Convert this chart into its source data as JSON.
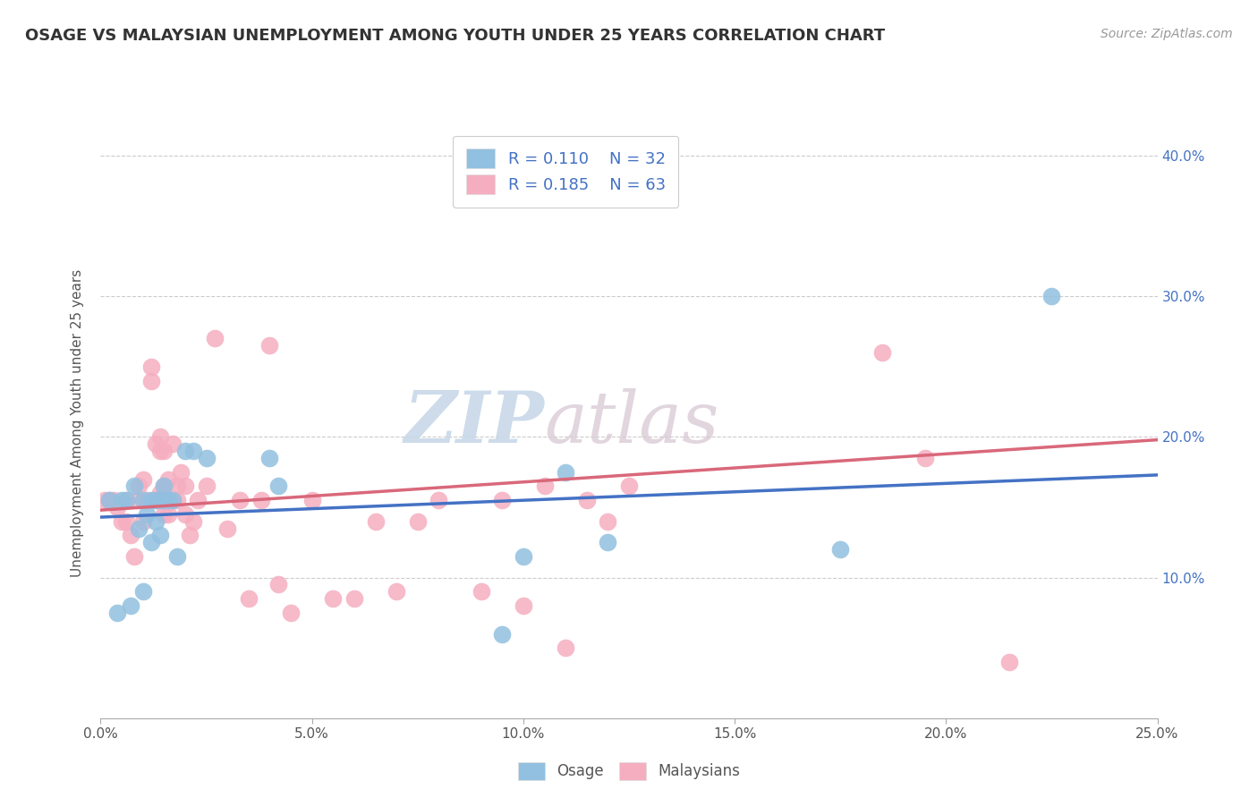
{
  "title": "OSAGE VS MALAYSIAN UNEMPLOYMENT AMONG YOUTH UNDER 25 YEARS CORRELATION CHART",
  "source": "Source: ZipAtlas.com",
  "ylabel": "Unemployment Among Youth under 25 years",
  "xlim": [
    0.0,
    0.25
  ],
  "ylim": [
    0.0,
    0.42
  ],
  "xticks": [
    0.0,
    0.05,
    0.1,
    0.15,
    0.2,
    0.25
  ],
  "yticks": [
    0.1,
    0.2,
    0.3,
    0.4
  ],
  "ytick_labels": [
    "10.0%",
    "20.0%",
    "30.0%",
    "40.0%"
  ],
  "xtick_labels": [
    "0.0%",
    "5.0%",
    "10.0%",
    "15.0%",
    "20.0%",
    "25.0%"
  ],
  "legend_r1": "R = 0.110",
  "legend_n1": "N = 32",
  "legend_r2": "R = 0.185",
  "legend_n2": "N = 63",
  "osage_color": "#92c0e0",
  "malay_color": "#f5aec0",
  "osage_line_color": "#4472c4",
  "malay_line_color": "#d9687a",
  "watermark_zip": "ZIP",
  "watermark_atlas": "atlas",
  "osage_x": [
    0.002,
    0.004,
    0.005,
    0.006,
    0.007,
    0.008,
    0.009,
    0.01,
    0.01,
    0.011,
    0.012,
    0.012,
    0.013,
    0.013,
    0.014,
    0.014,
    0.015,
    0.015,
    0.016,
    0.017,
    0.018,
    0.02,
    0.022,
    0.025,
    0.04,
    0.042,
    0.095,
    0.1,
    0.11,
    0.12,
    0.175,
    0.225
  ],
  "osage_y": [
    0.155,
    0.075,
    0.155,
    0.155,
    0.08,
    0.165,
    0.135,
    0.09,
    0.155,
    0.145,
    0.125,
    0.155,
    0.14,
    0.155,
    0.13,
    0.155,
    0.155,
    0.165,
    0.155,
    0.155,
    0.115,
    0.19,
    0.19,
    0.185,
    0.185,
    0.165,
    0.06,
    0.115,
    0.175,
    0.125,
    0.12,
    0.3
  ],
  "malay_x": [
    0.001,
    0.002,
    0.003,
    0.004,
    0.005,
    0.006,
    0.006,
    0.007,
    0.008,
    0.009,
    0.009,
    0.01,
    0.01,
    0.011,
    0.012,
    0.012,
    0.013,
    0.013,
    0.014,
    0.014,
    0.014,
    0.015,
    0.015,
    0.015,
    0.016,
    0.016,
    0.017,
    0.017,
    0.018,
    0.018,
    0.019,
    0.02,
    0.02,
    0.021,
    0.022,
    0.023,
    0.025,
    0.027,
    0.03,
    0.033,
    0.035,
    0.038,
    0.04,
    0.042,
    0.045,
    0.05,
    0.055,
    0.06,
    0.065,
    0.07,
    0.075,
    0.08,
    0.09,
    0.095,
    0.1,
    0.105,
    0.11,
    0.115,
    0.12,
    0.125,
    0.185,
    0.195,
    0.215
  ],
  "malay_y": [
    0.155,
    0.155,
    0.155,
    0.15,
    0.14,
    0.14,
    0.155,
    0.13,
    0.115,
    0.155,
    0.165,
    0.14,
    0.17,
    0.155,
    0.24,
    0.25,
    0.155,
    0.195,
    0.16,
    0.19,
    0.2,
    0.145,
    0.165,
    0.19,
    0.145,
    0.17,
    0.155,
    0.195,
    0.155,
    0.165,
    0.175,
    0.145,
    0.165,
    0.13,
    0.14,
    0.155,
    0.165,
    0.27,
    0.135,
    0.155,
    0.085,
    0.155,
    0.265,
    0.095,
    0.075,
    0.155,
    0.085,
    0.085,
    0.14,
    0.09,
    0.14,
    0.155,
    0.09,
    0.155,
    0.08,
    0.165,
    0.05,
    0.155,
    0.14,
    0.165,
    0.26,
    0.185,
    0.04
  ],
  "osage_line_x0": 0.0,
  "osage_line_y0": 0.143,
  "osage_line_x1": 0.25,
  "osage_line_y1": 0.173,
  "malay_line_x0": 0.0,
  "malay_line_y0": 0.148,
  "malay_line_x1": 0.25,
  "malay_line_y1": 0.198
}
